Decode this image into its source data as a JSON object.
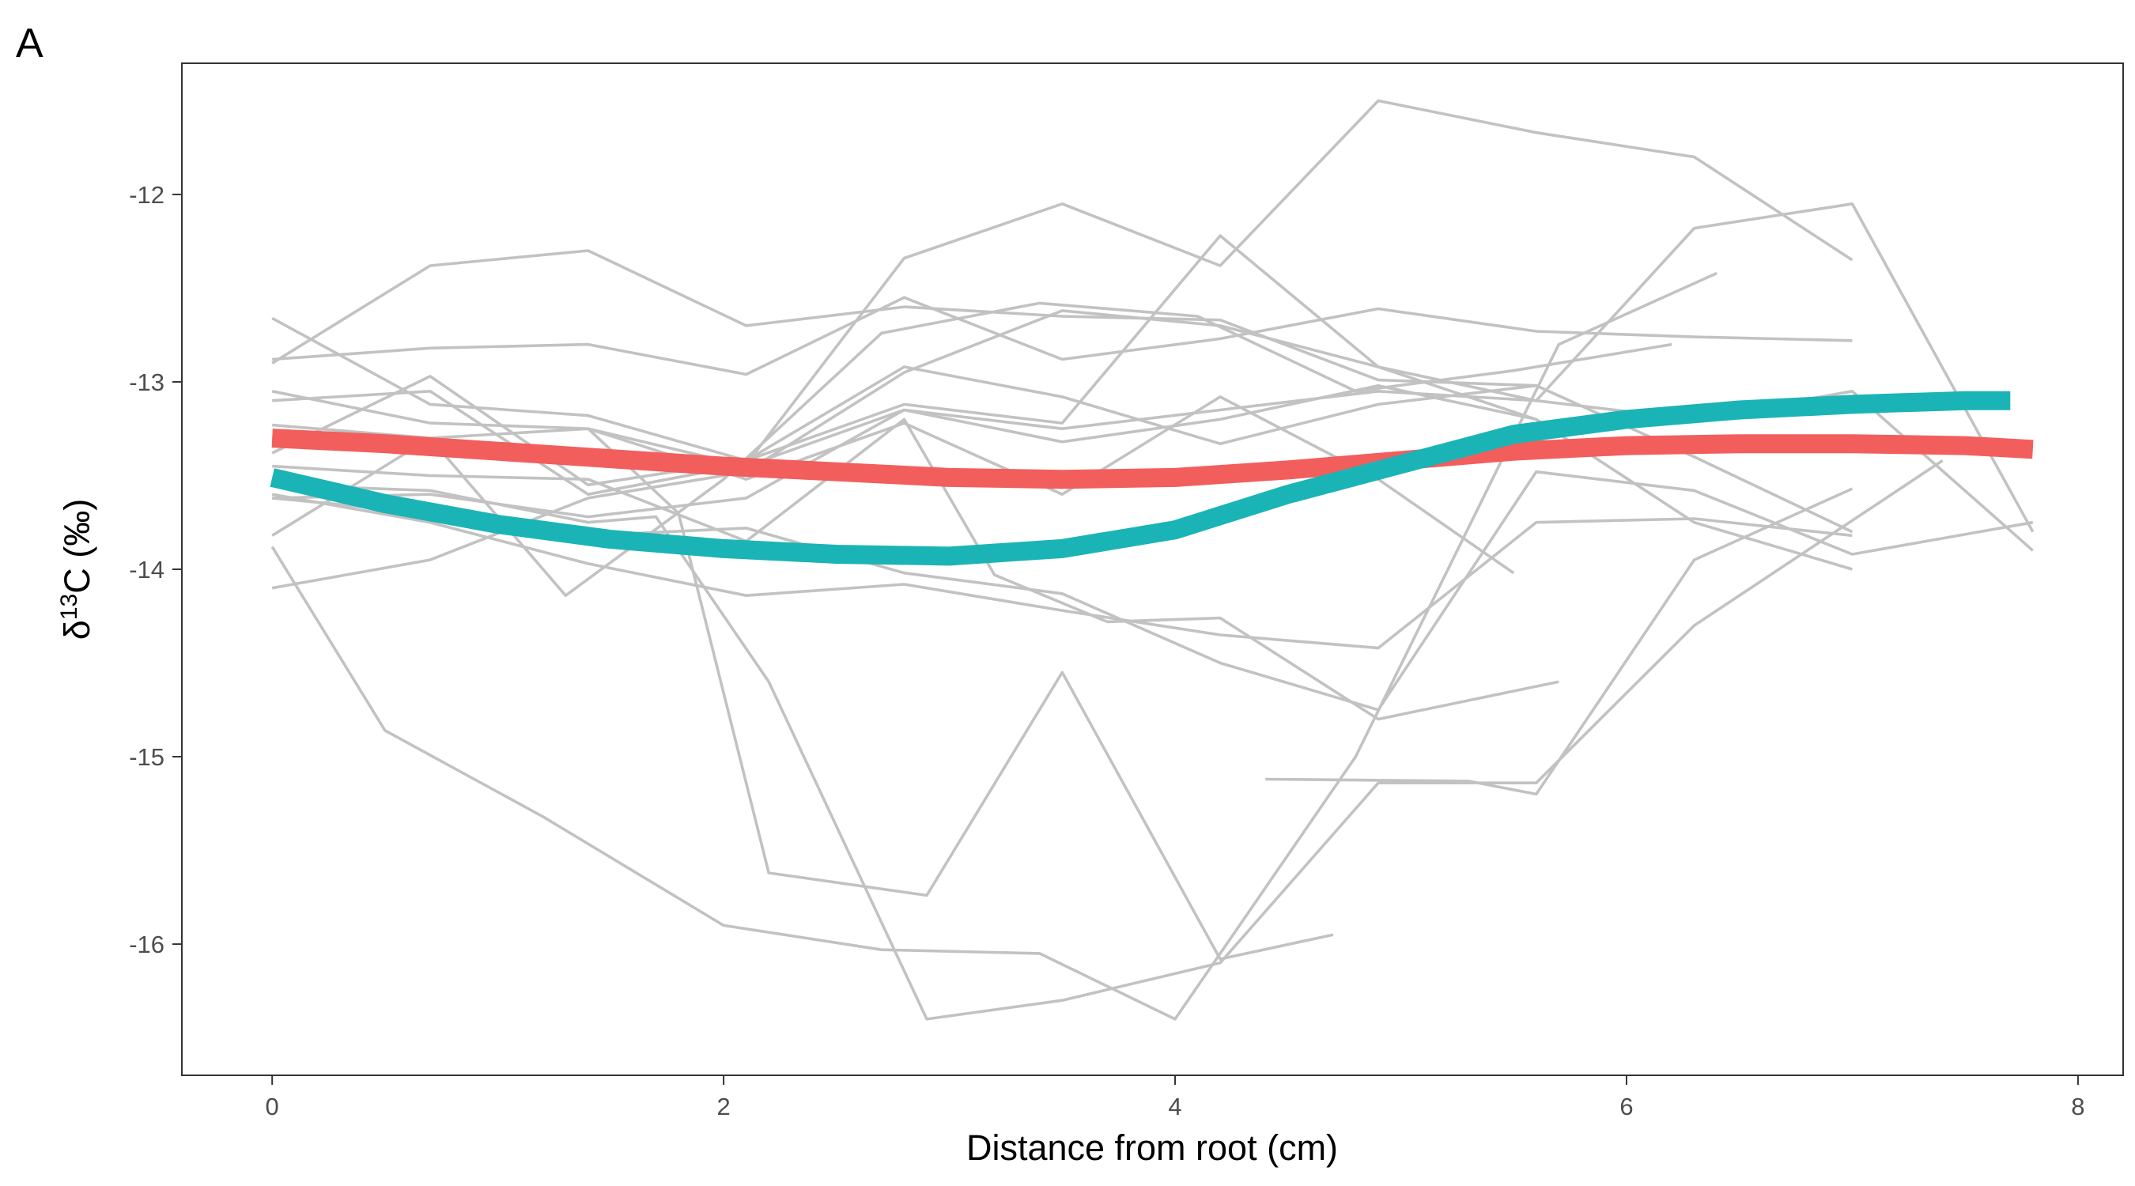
{
  "panel_label": "A",
  "chart_data": {
    "type": "line",
    "xlabel": "Distance from root (cm)",
    "ylabel": {
      "delta": "δ",
      "superscript": "13",
      "rest": "C (‰)"
    },
    "xlim": [
      -0.4,
      8.2
    ],
    "ylim": [
      -16.7,
      -11.3
    ],
    "xticks": [
      0,
      2,
      4,
      6,
      8
    ],
    "yticks": [
      -16,
      -15,
      -14,
      -13,
      -12
    ],
    "xtick_labels": [
      "0",
      "2",
      "4",
      "6",
      "8"
    ],
    "ytick_labels": [
      "-16",
      "-15",
      "-14",
      "-13",
      "-12"
    ],
    "grid": false,
    "individual_color": "#c2c2c2",
    "individual_series": [
      {
        "x": [
          0,
          0.7,
          1.4,
          2.1,
          2.8,
          3.5,
          4.2,
          4.9,
          5.6
        ],
        "y": [
          -12.9,
          -12.38,
          -12.3,
          -12.7,
          -12.6,
          -12.65,
          -12.67,
          -12.99,
          -13.02
        ]
      },
      {
        "x": [
          0,
          0.7,
          1.4,
          2.1,
          2.8,
          3.5,
          4.2,
          4.9,
          5.6,
          6.3,
          7.0
        ],
        "y": [
          -12.88,
          -12.82,
          -12.8,
          -12.96,
          -12.55,
          -12.88,
          -12.77,
          -12.61,
          -12.73,
          -12.76,
          -12.78
        ]
      },
      {
        "x": [
          0,
          0.7,
          1.4,
          2.1,
          2.8,
          3.5,
          4.2,
          4.9,
          5.6
        ],
        "y": [
          -12.66,
          -13.12,
          -13.18,
          -13.42,
          -13.12,
          -13.22,
          -12.22,
          -12.92,
          -13.2
        ]
      },
      {
        "x": [
          0,
          0.7,
          1.4,
          2.1,
          2.8,
          3.5,
          4.2,
          4.9,
          5.6,
          6.3,
          7.0
        ],
        "y": [
          -13.1,
          -13.05,
          -13.6,
          -13.44,
          -12.34,
          -12.05,
          -12.38,
          -11.5,
          -11.67,
          -11.8,
          -12.35
        ]
      },
      {
        "x": [
          0,
          0.7,
          1.4,
          2.1,
          2.8,
          3.5,
          4.2,
          4.9,
          5.6,
          6.3,
          7.0,
          7.8
        ],
        "y": [
          -13.05,
          -13.22,
          -13.25,
          -13.45,
          -13.15,
          -13.25,
          -13.15,
          -13.05,
          -13.1,
          -13.2,
          -13.05,
          -13.9
        ]
      },
      {
        "x": [
          0,
          0.7,
          1.3,
          2.0,
          2.7,
          3.4,
          4.1,
          4.8,
          5.5,
          6.2
        ],
        "y": [
          -13.23,
          -13.3,
          -14.14,
          -13.52,
          -12.74,
          -12.58,
          -12.65,
          -13.05,
          -12.94,
          -12.8
        ]
      },
      {
        "x": [
          0,
          0.7,
          1.4,
          2.1,
          2.8,
          3.5,
          4.2,
          4.9,
          5.6,
          6.3,
          7.0
        ],
        "y": [
          -13.38,
          -12.97,
          -13.55,
          -13.42,
          -12.92,
          -13.08,
          -13.33,
          -13.12,
          -13.02,
          -13.4,
          -13.8
        ]
      },
      {
        "x": [
          0,
          0.7,
          1.4,
          2.1,
          2.8,
          3.5,
          4.2,
          4.9,
          5.6,
          6.3,
          7.0
        ],
        "y": [
          -13.62,
          -13.6,
          -13.72,
          -13.62,
          -13.15,
          -13.32,
          -13.2,
          -13.02,
          -13.2,
          -13.75,
          -14.0
        ]
      },
      {
        "x": [
          0,
          0.7,
          1.4,
          2.1,
          2.8,
          3.5,
          4.2,
          4.9,
          5.5
        ],
        "y": [
          -13.82,
          -13.3,
          -13.25,
          -13.52,
          -13.22,
          -13.6,
          -13.08,
          -13.52,
          -14.02
        ]
      },
      {
        "x": [
          0,
          0.7,
          1.4,
          2.1,
          2.8,
          3.5,
          4.2,
          4.9,
          5.6,
          6.3,
          7.0
        ],
        "y": [
          -13.6,
          -13.75,
          -13.97,
          -14.14,
          -14.08,
          -14.22,
          -14.35,
          -14.42,
          -13.75,
          -13.73,
          -13.82
        ]
      },
      {
        "x": [
          0,
          0.7,
          1.4,
          2.1,
          2.8,
          3.2,
          3.7,
          4.2,
          4.9,
          5.7
        ],
        "y": [
          -13.45,
          -13.5,
          -13.52,
          -13.85,
          -13.2,
          -14.03,
          -14.28,
          -14.26,
          -14.8,
          -14.6
        ]
      },
      {
        "x": [
          0,
          0.7,
          1.4,
          2.1,
          2.8,
          3.5,
          4.2,
          4.9,
          5.6,
          6.3,
          7.0,
          7.8
        ],
        "y": [
          -13.62,
          -13.7,
          -13.82,
          -13.78,
          -14.02,
          -14.13,
          -14.5,
          -14.75,
          -13.48,
          -13.58,
          -13.92,
          -13.75
        ]
      },
      {
        "x": [
          0,
          0.7,
          1.4,
          2.1,
          2.8,
          3.5,
          4.2,
          4.9,
          5.6,
          6.3,
          7.0,
          7.8
        ],
        "y": [
          -14.1,
          -13.95,
          -13.62,
          -13.48,
          -12.95,
          -12.62,
          -12.7,
          -12.92,
          -13.1,
          -12.18,
          -12.05,
          -13.8
        ]
      },
      {
        "x": [
          0,
          0.5,
          1.2,
          2.0,
          2.7,
          3.4,
          4.0,
          4.8,
          5.7,
          6.4
        ],
        "y": [
          -13.88,
          -14.86,
          -15.32,
          -15.9,
          -16.03,
          -16.05,
          -16.4,
          -15.0,
          -12.8,
          -12.42
        ]
      },
      {
        "x": [
          0,
          0.7,
          1.4,
          1.7,
          2.2,
          2.9,
          3.5,
          4.2,
          4.9,
          5.6,
          6.3,
          7.4
        ],
        "y": [
          -13.55,
          -13.58,
          -13.75,
          -13.72,
          -14.6,
          -16.4,
          -16.3,
          -16.1,
          -15.14,
          -15.14,
          -14.3,
          -13.42
        ]
      },
      {
        "x": [
          1.4,
          1.8,
          2.2,
          2.9,
          3.5,
          4.2,
          4.7
        ],
        "y": [
          -13.25,
          -13.7,
          -15.62,
          -15.74,
          -14.55,
          -16.08,
          -15.95
        ]
      },
      {
        "x": [
          4.4,
          5.3,
          5.6,
          6.3,
          7.0
        ],
        "y": [
          -15.12,
          -15.13,
          -15.2,
          -13.95,
          -13.57
        ]
      }
    ],
    "trends": [
      {
        "color": "#f25e5c",
        "x": [
          0,
          0.5,
          1,
          1.5,
          2,
          2.5,
          3,
          3.5,
          4,
          4.5,
          5,
          5.5,
          6,
          6.5,
          7,
          7.5,
          7.8
        ],
        "y": [
          -13.3,
          -13.33,
          -13.37,
          -13.41,
          -13.45,
          -13.48,
          -13.51,
          -13.52,
          -13.51,
          -13.47,
          -13.42,
          -13.37,
          -13.34,
          -13.33,
          -13.33,
          -13.34,
          -13.36
        ]
      },
      {
        "color": "#1bb4b6",
        "x": [
          0,
          0.5,
          1,
          1.5,
          2,
          2.5,
          3,
          3.5,
          4,
          4.5,
          5,
          5.5,
          6,
          6.5,
          7,
          7.5,
          7.7
        ],
        "y": [
          -13.51,
          -13.65,
          -13.76,
          -13.84,
          -13.89,
          -13.92,
          -13.93,
          -13.89,
          -13.79,
          -13.6,
          -13.44,
          -13.28,
          -13.2,
          -13.15,
          -13.12,
          -13.1,
          -13.1
        ]
      }
    ]
  }
}
